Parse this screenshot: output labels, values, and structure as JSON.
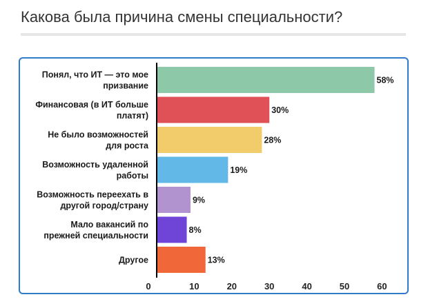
{
  "question": "Какова была причина смены специальности?",
  "chart_data": {
    "type": "bar",
    "orientation": "horizontal",
    "title": "",
    "xlabel": "",
    "ylabel": "",
    "xlim": [
      0,
      65
    ],
    "ticks": [
      0,
      10,
      20,
      30,
      40,
      50,
      60
    ],
    "grid": false,
    "categories": [
      [
        "Понял, что ИТ — это мое",
        "призвание"
      ],
      [
        "Финансовая (в ИТ больше",
        "платят)"
      ],
      [
        "Не было возможностей",
        "для роста"
      ],
      [
        "Возможность удаленной",
        "работы"
      ],
      [
        "Возможность переехать в",
        "другой город/страну"
      ],
      [
        "Мало вакансий по",
        "прежней специальности"
      ],
      [
        "Другое"
      ]
    ],
    "values": [
      58,
      30,
      28,
      19,
      9,
      8,
      13
    ],
    "value_labels": [
      "58%",
      "30%",
      "28%",
      "19%",
      "9%",
      "8%",
      "13%"
    ],
    "colors": [
      "#8dc8a8",
      "#df5057",
      "#f2cb6a",
      "#62b8e6",
      "#b093cf",
      "#6f45d8",
      "#f0683a"
    ]
  }
}
